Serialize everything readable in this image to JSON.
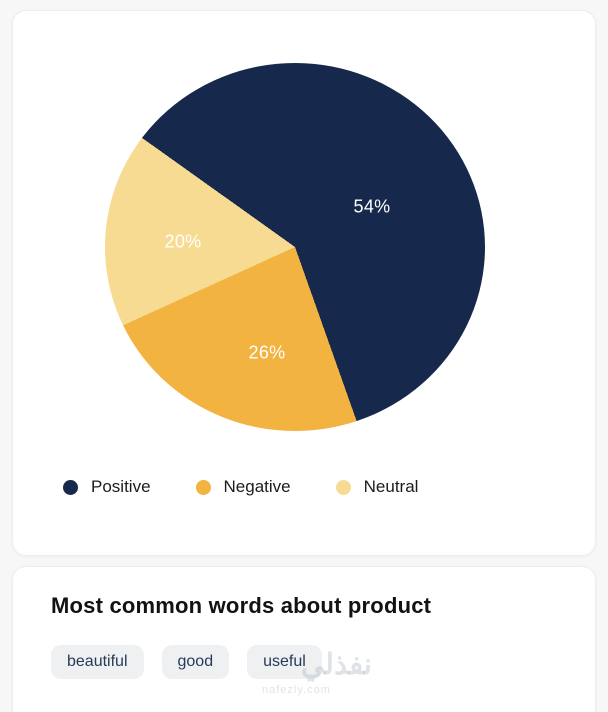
{
  "chart_data": {
    "type": "pie",
    "categories": [
      "Positive",
      "Negative",
      "Neutral"
    ],
    "values": [
      54,
      26,
      20
    ],
    "labels": [
      "54%",
      "26%",
      "20%"
    ],
    "colors": {
      "positive": "#16294c",
      "negative": "#f2b340",
      "neutral": "#f7db93"
    },
    "legend_position": "bottom"
  },
  "sentiment": {
    "slice_labels": {
      "positive": "54%",
      "negative": "26%",
      "neutral": "20%"
    },
    "legend": [
      {
        "label": "Positive",
        "color": "#16294c"
      },
      {
        "label": "Negative",
        "color": "#f2b340"
      },
      {
        "label": "Neutral",
        "color": "#f7db93"
      }
    ]
  },
  "words": {
    "title": "Most common words about product",
    "tags": [
      "beautiful",
      "good",
      "useful"
    ]
  },
  "watermark": {
    "text": "نفذلي",
    "url": "nafezly.com"
  }
}
